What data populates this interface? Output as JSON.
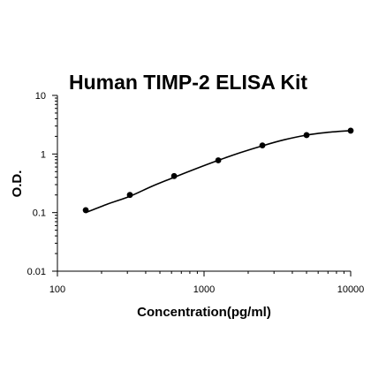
{
  "chart_data": {
    "type": "scatter",
    "title": "Human TIMP-2 ELISA Kit",
    "xlabel": "Concentration(pg/ml)",
    "ylabel": "O.D.",
    "x_scale": "log",
    "y_scale": "log",
    "xlim": [
      100,
      10000
    ],
    "ylim": [
      0.01,
      10
    ],
    "x_ticks": [
      "100",
      "1000",
      "10000"
    ],
    "y_ticks": [
      "0.01",
      "0.1",
      "1",
      "10"
    ],
    "grid": false,
    "legend": "none",
    "series": [
      {
        "x": [
          156,
          312,
          625,
          1250,
          2500,
          5000,
          10000
        ],
        "y": [
          0.11,
          0.2,
          0.42,
          0.78,
          1.4,
          2.1,
          2.5
        ]
      }
    ],
    "fit_curve": {
      "x": [
        156,
        220,
        312,
        440,
        625,
        880,
        1250,
        1760,
        2500,
        3530,
        5000,
        7070,
        10000
      ],
      "y": [
        0.1,
        0.14,
        0.19,
        0.28,
        0.4,
        0.56,
        0.78,
        1.05,
        1.38,
        1.75,
        2.1,
        2.35,
        2.5
      ]
    },
    "colors": {
      "marker": "#000000",
      "curve": "#000000",
      "axis": "#000000"
    }
  }
}
